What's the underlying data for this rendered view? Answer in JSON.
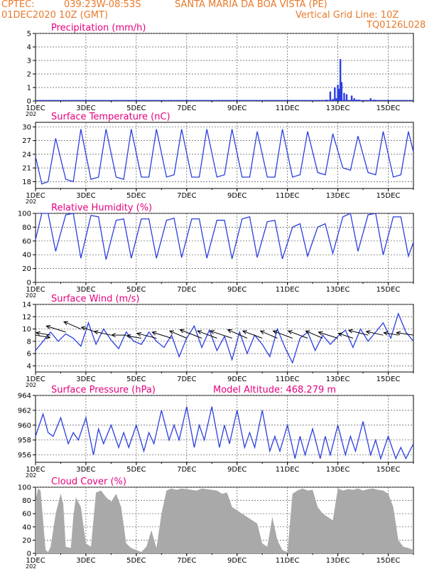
{
  "header": {
    "source": "CPTEC:",
    "coords": "039:23W-08:53S",
    "location": "SANTA MARIA DA BOA VISTA (PE)",
    "datetime": "01DEC2020 10Z (GMT)",
    "grid_note": "Vertical Grid Line: 10Z",
    "model_code": "TQ0126L028"
  },
  "colors": {
    "header": "#e8792a",
    "title": "#e5007e",
    "series": "#2b3fe0",
    "cloud": "#a9a9a9",
    "wind_vector": "#000000"
  },
  "x_axis": {
    "tick_labels": [
      "1DEC",
      "3DEC",
      "5DEC",
      "7DEC",
      "9DEC",
      "11DEC",
      "13DEC",
      "15DEC"
    ],
    "tick_days": [
      0,
      2,
      4,
      6,
      8,
      10,
      12,
      14
    ],
    "range_days": [
      0,
      15
    ],
    "year_fragment": "202"
  },
  "chart_data": [
    {
      "type": "bar",
      "title": "Precipitation (mm/h)",
      "ylim": [
        0,
        5
      ],
      "yticks": [
        0,
        1,
        2,
        3,
        4,
        5
      ],
      "x_days": [
        11.05,
        11.3,
        11.55,
        11.7,
        11.8,
        11.88,
        11.95,
        12.0,
        12.05,
        12.1,
        12.15,
        12.25,
        12.35,
        12.55,
        12.65,
        12.75,
        12.85,
        13.3,
        13.45
      ],
      "values": [
        0.05,
        0.05,
        0.1,
        0.7,
        0.15,
        1.0,
        0.2,
        1.2,
        0.9,
        3.1,
        1.4,
        0.6,
        0.5,
        0.4,
        0.2,
        0.1,
        0.1,
        0.2,
        0.1
      ]
    },
    {
      "type": "line",
      "title": "Surface Temperature (nC)",
      "ylim": [
        16.5,
        31
      ],
      "yticks": [
        18,
        21,
        24,
        27,
        30
      ],
      "x_days": [
        0,
        0.25,
        0.5,
        0.8,
        1.2,
        1.5,
        1.8,
        2.2,
        2.5,
        2.8,
        3.2,
        3.5,
        3.8,
        4.2,
        4.5,
        4.8,
        5.2,
        5.5,
        5.8,
        6.2,
        6.5,
        6.8,
        7.2,
        7.5,
        7.8,
        8.2,
        8.5,
        8.8,
        9.2,
        9.5,
        9.8,
        10.2,
        10.5,
        10.8,
        11.2,
        11.5,
        11.8,
        12.2,
        12.5,
        12.8,
        13.2,
        13.5,
        13.8,
        14.2,
        14.5,
        14.8,
        15
      ],
      "values": [
        23.5,
        17.5,
        18,
        27.5,
        18.5,
        18,
        29.5,
        18.5,
        19,
        29.5,
        19,
        18.5,
        29.5,
        19,
        19,
        29.5,
        19,
        19.5,
        29.5,
        19,
        19,
        29.5,
        19,
        19.5,
        29.5,
        19,
        19,
        29,
        19,
        19,
        29.5,
        19,
        19.5,
        29,
        20,
        19.5,
        28.5,
        21,
        20.5,
        28,
        20,
        19.5,
        29,
        19,
        19.5,
        29,
        24.5
      ]
    },
    {
      "type": "line",
      "title": "Relative Humidity (%)",
      "ylim": [
        0,
        100
      ],
      "yticks": [
        0,
        20,
        40,
        60,
        80,
        100
      ],
      "x_days": [
        0,
        0.25,
        0.5,
        0.8,
        1.2,
        1.5,
        1.8,
        2.2,
        2.5,
        2.8,
        3.2,
        3.5,
        3.8,
        4.2,
        4.5,
        4.8,
        5.2,
        5.5,
        5.8,
        6.2,
        6.5,
        6.8,
        7.2,
        7.5,
        7.8,
        8.2,
        8.5,
        8.8,
        9.2,
        9.5,
        9.8,
        10.2,
        10.5,
        10.8,
        11.2,
        11.5,
        11.8,
        12.2,
        12.5,
        12.8,
        13.2,
        13.5,
        13.8,
        14.2,
        14.5,
        14.8,
        15
      ],
      "values": [
        62,
        100,
        100,
        45,
        98,
        100,
        35,
        97,
        95,
        33,
        90,
        92,
        35,
        92,
        92,
        35,
        90,
        93,
        36,
        92,
        92,
        35,
        90,
        90,
        34,
        92,
        95,
        36,
        88,
        90,
        34,
        80,
        85,
        38,
        80,
        85,
        42,
        95,
        100,
        45,
        98,
        100,
        40,
        95,
        95,
        38,
        58
      ]
    },
    {
      "type": "line",
      "title": "Surface Wind (m/s)",
      "ylim": [
        3,
        14
      ],
      "yticks": [
        4,
        6,
        8,
        10,
        12,
        14
      ],
      "x_days": [
        0,
        0.3,
        0.6,
        0.9,
        1.2,
        1.5,
        1.8,
        2.1,
        2.4,
        2.7,
        3.0,
        3.3,
        3.6,
        3.9,
        4.2,
        4.5,
        4.8,
        5.1,
        5.4,
        5.7,
        6.0,
        6.3,
        6.6,
        6.9,
        7.2,
        7.5,
        7.8,
        8.1,
        8.4,
        8.7,
        9.0,
        9.3,
        9.6,
        9.9,
        10.2,
        10.5,
        10.8,
        11.1,
        11.4,
        11.7,
        12.0,
        12.3,
        12.6,
        12.9,
        13.2,
        13.5,
        13.8,
        14.1,
        14.4,
        14.7,
        15
      ],
      "values": [
        6.5,
        8,
        9.5,
        8,
        9.2,
        8.5,
        7.2,
        11,
        7.5,
        10,
        8.2,
        6.8,
        9.5,
        8,
        7.5,
        9.5,
        8,
        7,
        9,
        5.5,
        8.5,
        10.5,
        7,
        9.8,
        6.5,
        8.8,
        5,
        9.5,
        6,
        9,
        7.5,
        5.5,
        10,
        7,
        4.5,
        8.5,
        9.5,
        6.5,
        9,
        7.5,
        8.8,
        9.8,
        7,
        10,
        8,
        9.5,
        11,
        8.5,
        12.5,
        9.5,
        8
      ],
      "vector_origin_days": [
        0,
        0.6,
        1.2,
        1.8,
        2.4,
        3.0,
        3.6,
        4.2,
        4.8,
        5.4,
        6.0,
        6.6,
        7.2,
        7.8,
        8.4,
        9.0,
        9.6,
        10.2,
        10.8,
        11.4,
        12.0,
        12.6,
        13.2,
        13.8,
        14.4,
        15.0
      ],
      "vector_speed": [
        9,
        9,
        9.5,
        10,
        9.5,
        9,
        9,
        8.5,
        8.5,
        8.5,
        8.5,
        8.5,
        8.5,
        8.5,
        8.5,
        8.5,
        8.5,
        8.5,
        8.5,
        8.5,
        8.5,
        8.5,
        9,
        9,
        9,
        9
      ],
      "vector_u": [
        0.6,
        -0.6,
        -0.8,
        -0.7,
        -0.6,
        -0.7,
        -0.6,
        -0.6,
        -0.8,
        -0.8,
        -0.7,
        -0.9,
        -0.8,
        -0.9,
        -0.8,
        -0.8,
        -0.7,
        -0.8,
        -0.8,
        -0.7,
        -0.8,
        -0.6,
        -0.8,
        -0.7,
        -0.6,
        -0.7
      ],
      "vector_v": [
        -0.1,
        0.1,
        0.25,
        0.3,
        0.2,
        0.15,
        0.0,
        0.1,
        0.2,
        0.25,
        0.3,
        0.35,
        0.3,
        0.3,
        0.35,
        0.3,
        0.3,
        0.3,
        0.3,
        0.3,
        0.25,
        0.2,
        0.2,
        0.15,
        0.1,
        0.1
      ]
    },
    {
      "type": "line",
      "title": "Surface Pressure (hPa)",
      "annotation": "Model Altitude: 468.279 m",
      "ylim": [
        955,
        964
      ],
      "yticks": [
        956,
        958,
        960,
        962,
        964
      ],
      "x_days": [
        0,
        0.3,
        0.5,
        0.7,
        1.0,
        1.3,
        1.5,
        1.7,
        2.0,
        2.3,
        2.5,
        2.7,
        3.0,
        3.3,
        3.5,
        3.7,
        4.0,
        4.3,
        4.5,
        4.7,
        5.0,
        5.3,
        5.5,
        5.7,
        6.0,
        6.3,
        6.5,
        6.7,
        7.0,
        7.3,
        7.5,
        7.7,
        8.0,
        8.3,
        8.5,
        8.7,
        9.0,
        9.3,
        9.5,
        9.7,
        10.0,
        10.3,
        10.5,
        10.7,
        11.0,
        11.3,
        11.5,
        11.7,
        12.0,
        12.3,
        12.5,
        12.7,
        13.0,
        13.3,
        13.5,
        13.7,
        14.0,
        14.3,
        14.5,
        14.7,
        15.0
      ],
      "values": [
        958.5,
        961.5,
        959,
        958.5,
        961,
        957.5,
        959,
        958,
        961,
        956,
        959.5,
        957.5,
        960,
        957,
        959,
        957,
        960,
        956.5,
        959,
        957.5,
        962,
        958,
        960,
        958,
        962.5,
        957,
        960,
        958,
        962.5,
        957,
        960,
        957.5,
        962,
        957,
        959,
        957,
        962,
        956.5,
        958.5,
        956.5,
        960,
        955.5,
        958.5,
        956,
        959.5,
        955.5,
        958.5,
        956,
        960,
        956,
        958.5,
        956.5,
        960.5,
        956,
        958,
        955.5,
        958.5,
        955.5,
        957,
        955.5,
        957.5
      ]
    },
    {
      "type": "area",
      "title": "Cloud Cover (%)",
      "ylim": [
        0,
        100
      ],
      "yticks": [
        0,
        20,
        40,
        60,
        80,
        100
      ],
      "x_days": [
        0,
        0.1,
        0.2,
        0.4,
        0.5,
        0.6,
        0.8,
        1.0,
        1.1,
        1.2,
        1.4,
        1.5,
        1.6,
        1.8,
        2.0,
        2.2,
        2.4,
        2.6,
        2.8,
        3.0,
        3.2,
        3.4,
        3.6,
        3.8,
        4.0,
        4.2,
        4.4,
        4.6,
        4.8,
        5.0,
        5.2,
        5.4,
        5.6,
        5.8,
        6.0,
        6.2,
        6.4,
        6.6,
        6.8,
        7.0,
        7.2,
        7.4,
        7.6,
        7.8,
        8.0,
        8.2,
        8.4,
        8.6,
        8.8,
        9.0,
        9.2,
        9.4,
        9.6,
        9.8,
        10.0,
        10.2,
        10.4,
        10.6,
        10.8,
        11.0,
        11.2,
        11.4,
        11.6,
        11.8,
        12.0,
        12.2,
        12.4,
        12.6,
        12.8,
        13.0,
        13.2,
        13.4,
        13.6,
        13.8,
        14.0,
        14.2,
        14.4,
        14.6,
        14.8,
        15.0
      ],
      "values": [
        80,
        98,
        95,
        5,
        2,
        10,
        60,
        90,
        75,
        10,
        8,
        55,
        85,
        70,
        15,
        10,
        92,
        95,
        85,
        78,
        90,
        70,
        15,
        8,
        5,
        2,
        10,
        35,
        8,
        60,
        95,
        98,
        96,
        98,
        97,
        96,
        95,
        98,
        97,
        96,
        95,
        90,
        92,
        70,
        65,
        60,
        55,
        50,
        45,
        15,
        10,
        55,
        20,
        5,
        2,
        90,
        95,
        98,
        95,
        96,
        70,
        60,
        55,
        50,
        98,
        95,
        97,
        96,
        98,
        95,
        97,
        98,
        96,
        95,
        90,
        70,
        20,
        10,
        8,
        5
      ]
    }
  ]
}
